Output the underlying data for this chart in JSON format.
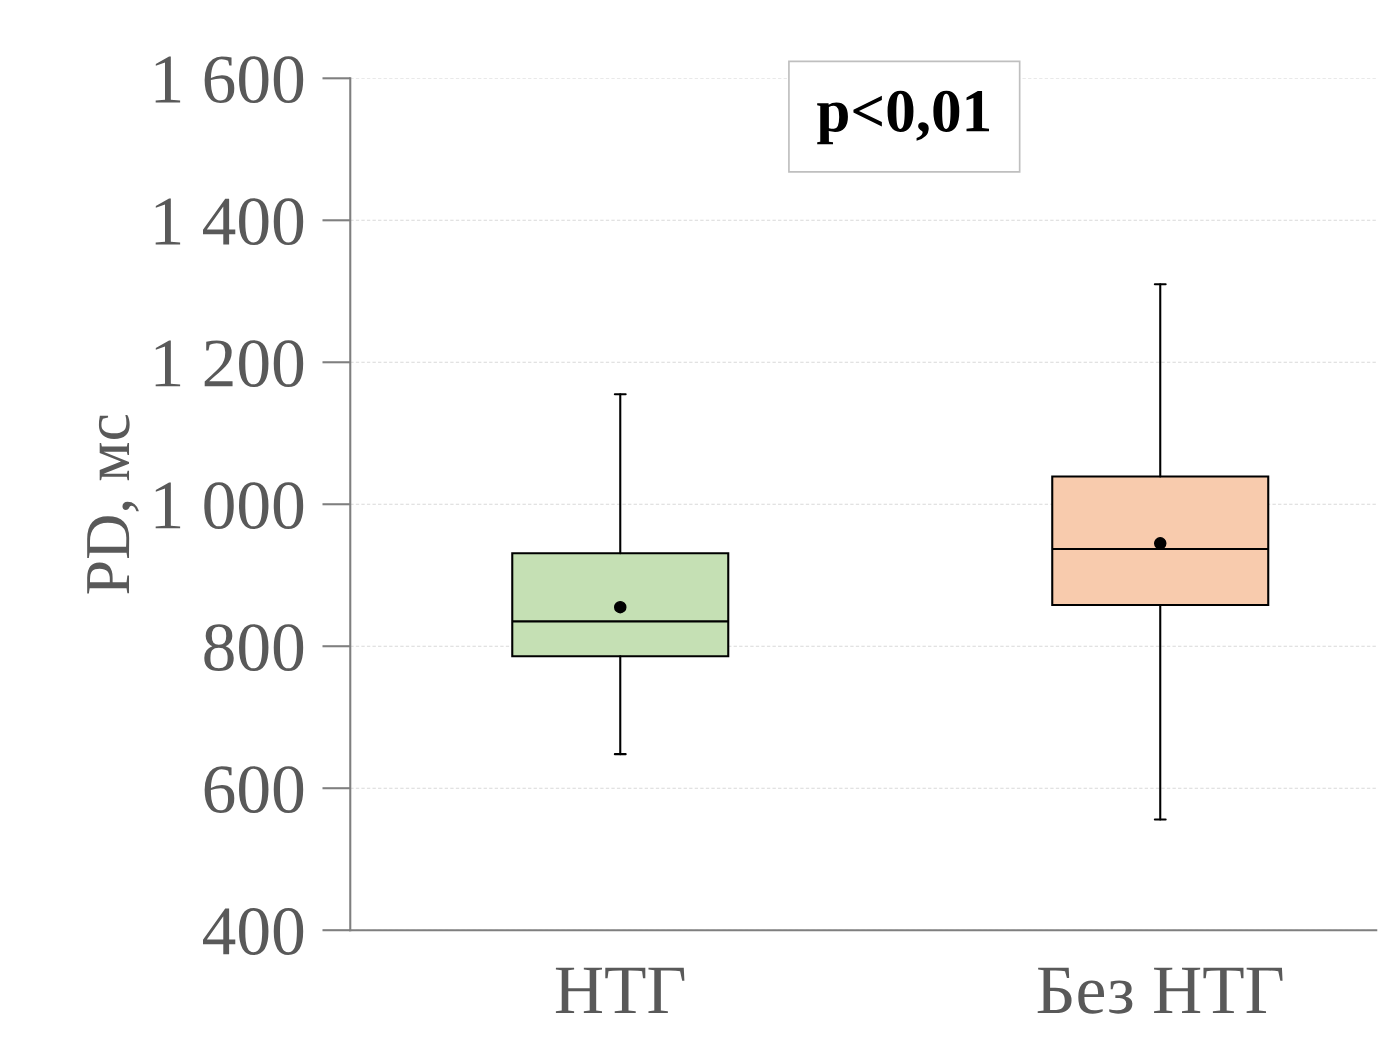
{
  "chart_data": {
    "type": "box",
    "categories": [
      "НТГ",
      "Без НТГ"
    ],
    "boxes": [
      {
        "low": 648,
        "q1": 786,
        "median": 835,
        "q3": 931,
        "high": 1155,
        "mean": 855
      },
      {
        "low": 556,
        "q1": 858,
        "median": 937,
        "q3": 1039,
        "high": 1310,
        "mean": 945
      }
    ],
    "colors": [
      "#c5e0b4",
      "#f8cbad"
    ],
    "ylabel": "PD, мс",
    "ylim": [
      400,
      1600
    ],
    "yticks": [
      400,
      600,
      800,
      {
        "value": 1000,
        "label": "1 000"
      },
      {
        "value": 1200,
        "label": "1 200"
      },
      {
        "value": 1400,
        "label": "1 400"
      },
      {
        "value": 1600,
        "label": "1 600"
      }
    ],
    "grid": "y",
    "annotations": [
      "p<0,01"
    ]
  }
}
